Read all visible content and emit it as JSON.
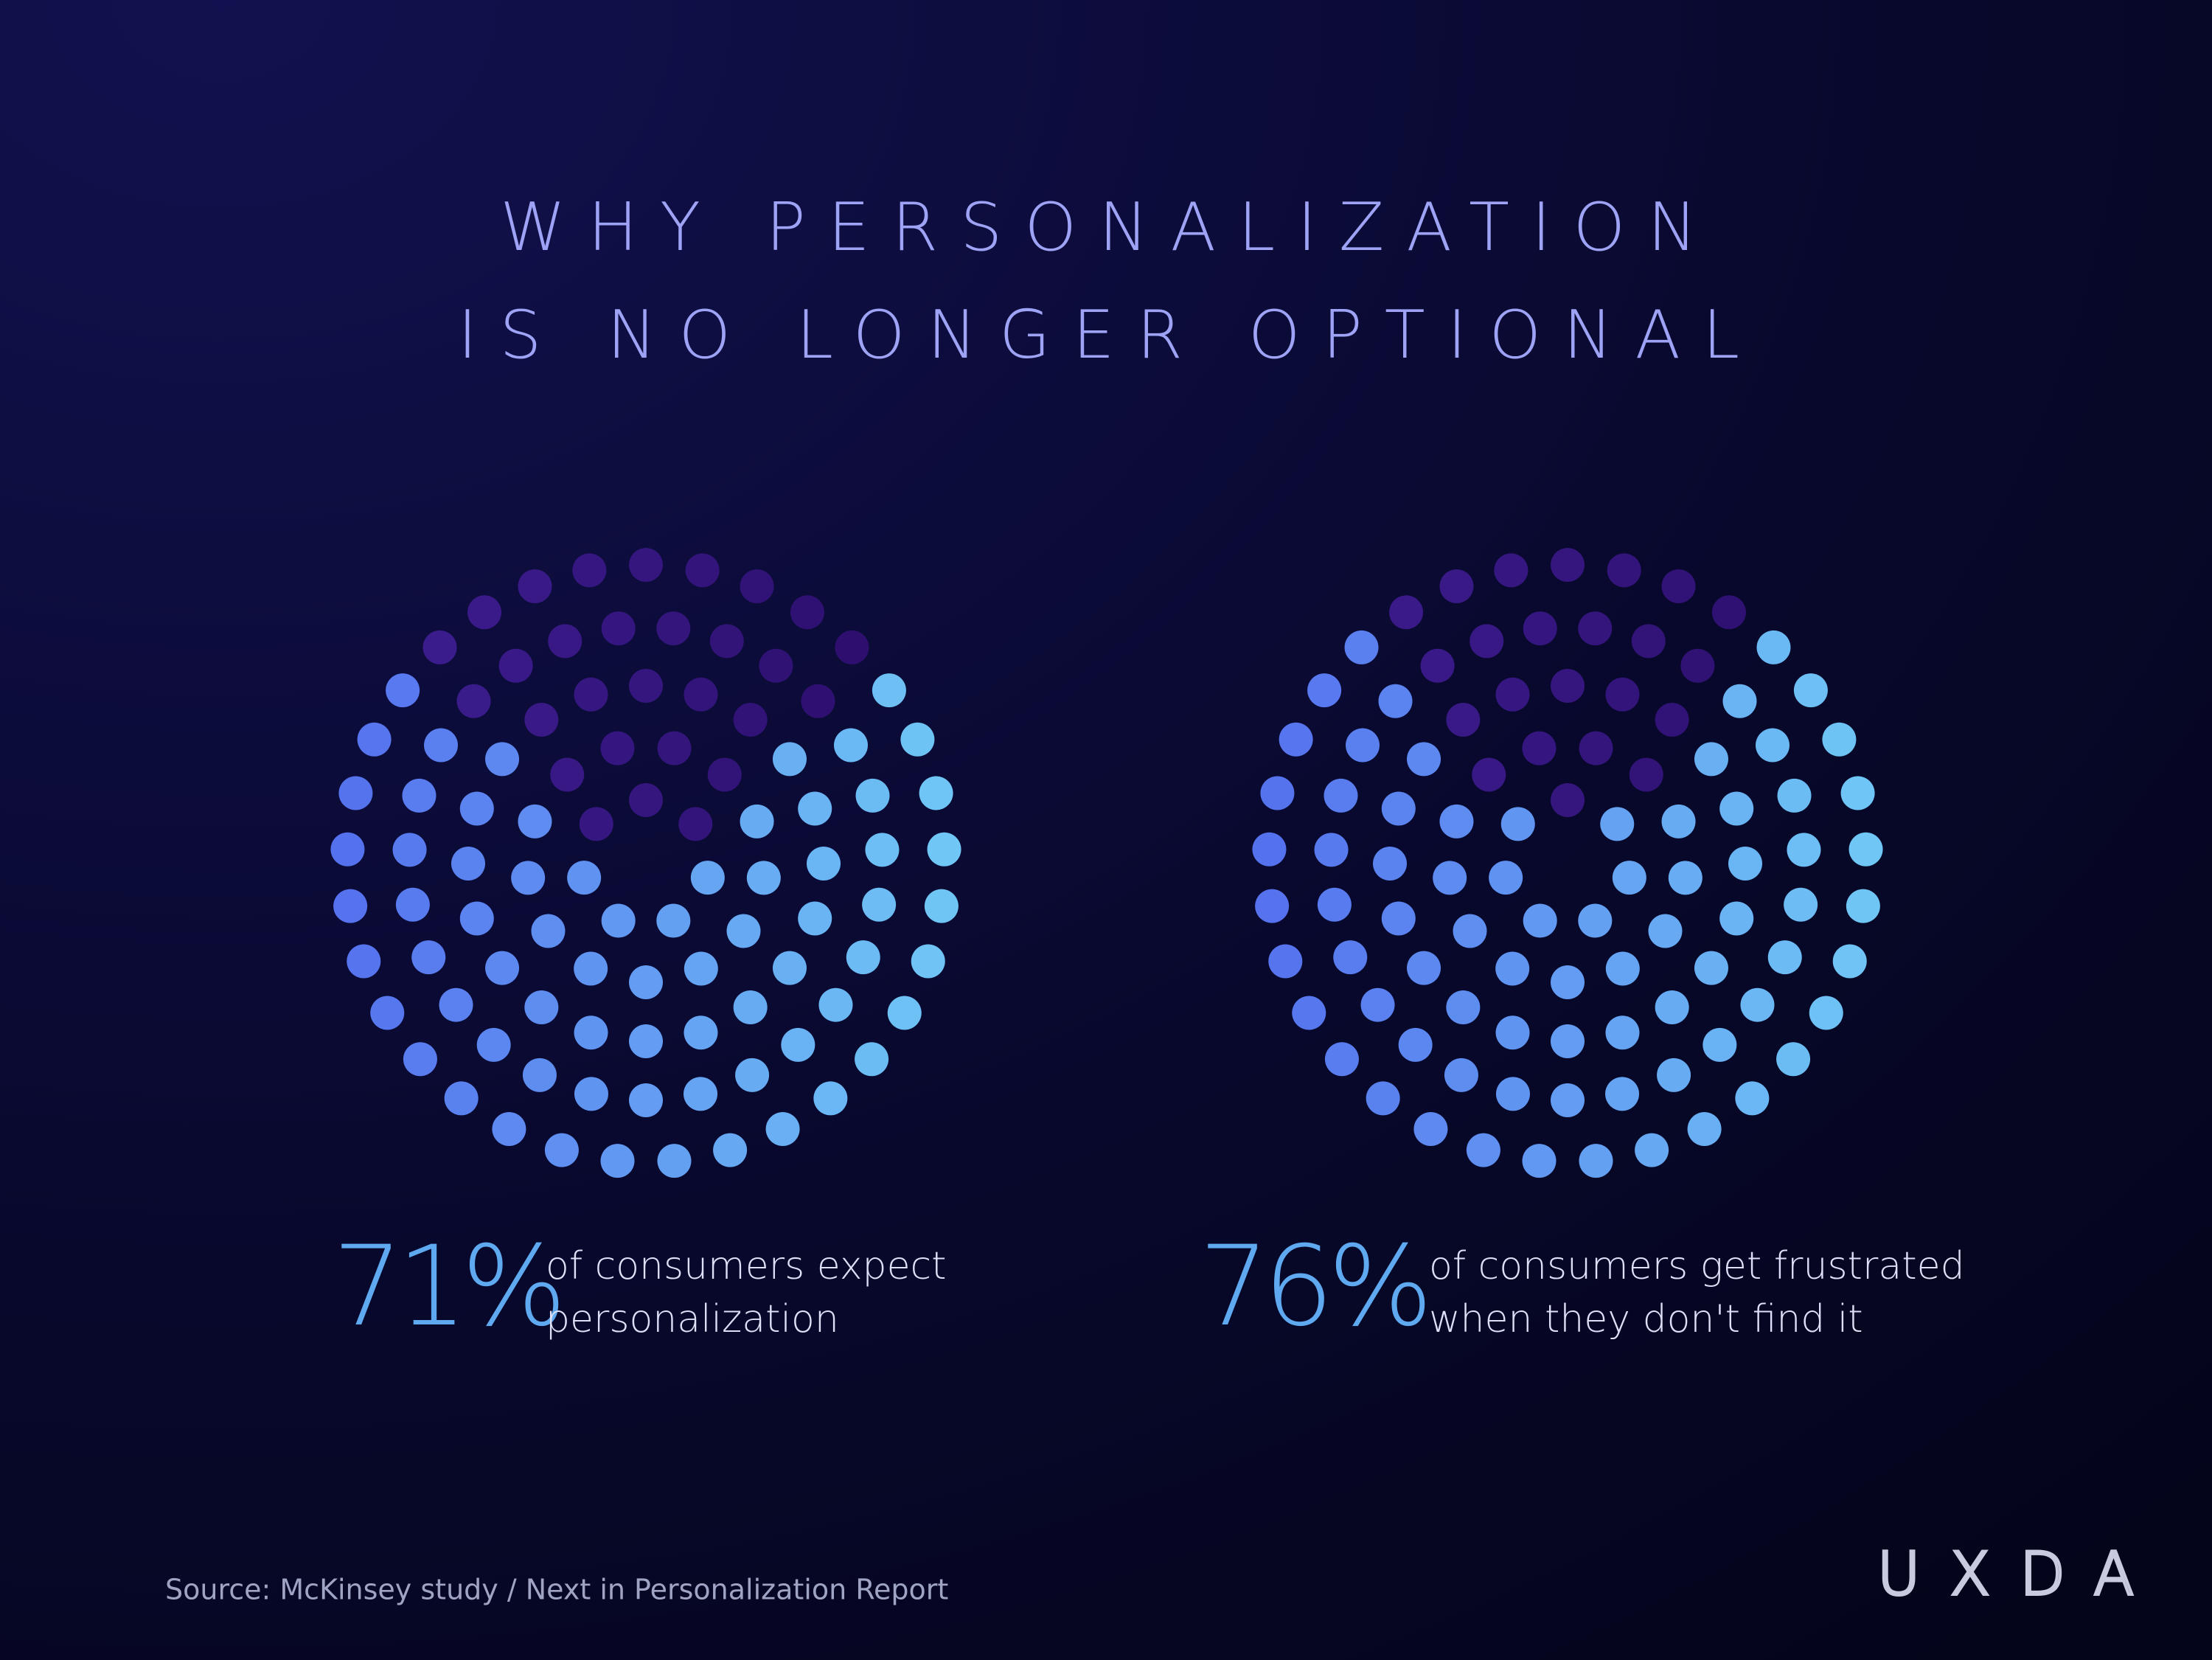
{
  "title": [
    "WHY PERSONALIZATION",
    "IS NO LONGER OPTIONAL"
  ],
  "chart_data": [
    {
      "type": "dots",
      "values": [
        71
      ],
      "value_labels": [
        "71%"
      ],
      "caption": [
        "of consumers expect",
        "personalization"
      ]
    },
    {
      "type": "dots",
      "values": [
        76
      ],
      "value_labels": [
        "76%"
      ],
      "caption": [
        "of consumers get frustrated",
        "when they don't find it"
      ]
    }
  ],
  "source": "Source: McKinsey study / Next in Personalization Report",
  "logo": "UXDA"
}
